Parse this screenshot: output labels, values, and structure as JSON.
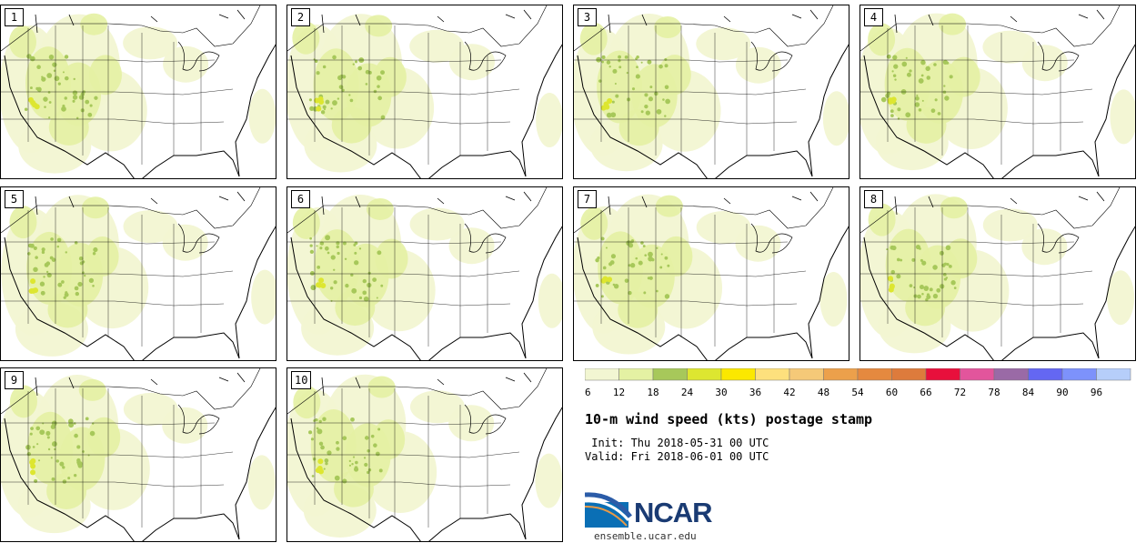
{
  "panels": [
    {
      "member": "1"
    },
    {
      "member": "2"
    },
    {
      "member": "3"
    },
    {
      "member": "4"
    },
    {
      "member": "5"
    },
    {
      "member": "6"
    },
    {
      "member": "7"
    },
    {
      "member": "8"
    },
    {
      "member": "9"
    },
    {
      "member": "10"
    }
  ],
  "colorbar": {
    "colors": [
      "#f2f6d2",
      "#e4f1a3",
      "#a7c85a",
      "#dde630",
      "#fbe800",
      "#fde07d",
      "#f5c978",
      "#eca04b",
      "#e5893f",
      "#dd7b3c",
      "#e8103c",
      "#e2559c",
      "#9a6aa6",
      "#6467f2",
      "#7d92fb",
      "#b6cefa"
    ],
    "labels": [
      "6",
      "12",
      "18",
      "24",
      "30",
      "36",
      "42",
      "48",
      "54",
      "60",
      "66",
      "72",
      "78",
      "84",
      "90",
      "96"
    ]
  },
  "title": "10-m wind speed (kts) postage stamp",
  "init": " Init: Thu 2018-05-31 00 UTC",
  "valid": "Valid: Fri 2018-06-01 00 UTC",
  "logo": {
    "text": "NCAR"
  },
  "url": "ensemble.ucar.edu"
}
